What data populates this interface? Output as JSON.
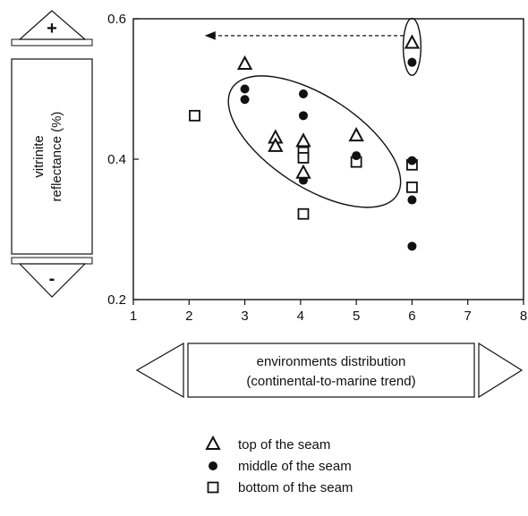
{
  "chart_data": {
    "type": "scatter",
    "title": "",
    "xlabel": "environments distribution\n(continental-to-marine trend)",
    "ylabel": "vitrinite\nreflectance (%)",
    "xlim": [
      1,
      8
    ],
    "ylim": [
      0.2,
      0.6
    ],
    "x_ticks": [
      "1",
      "2",
      "3",
      "4",
      "5",
      "6",
      "7",
      "8"
    ],
    "y_ticks": [
      "0.2",
      "0.4",
      "0.6"
    ],
    "y_axis_plus": "+",
    "y_axis_minus": "-",
    "grid": false,
    "legend_position": "bottom",
    "series": [
      {
        "name": "top of the seam",
        "marker": "triangle-open",
        "points": [
          {
            "x": 3.0,
            "y": 0.535
          },
          {
            "x": 3.55,
            "y": 0.43
          },
          {
            "x": 3.55,
            "y": 0.418
          },
          {
            "x": 4.05,
            "y": 0.425
          },
          {
            "x": 4.05,
            "y": 0.38
          },
          {
            "x": 5.0,
            "y": 0.433
          },
          {
            "x": 6.0,
            "y": 0.565
          }
        ]
      },
      {
        "name": "middle of the seam",
        "marker": "circle-filled",
        "points": [
          {
            "x": 3.0,
            "y": 0.5
          },
          {
            "x": 3.0,
            "y": 0.485
          },
          {
            "x": 4.05,
            "y": 0.493
          },
          {
            "x": 4.05,
            "y": 0.462
          },
          {
            "x": 4.05,
            "y": 0.37
          },
          {
            "x": 5.0,
            "y": 0.405
          },
          {
            "x": 6.0,
            "y": 0.398
          },
          {
            "x": 6.0,
            "y": 0.342
          },
          {
            "x": 6.0,
            "y": 0.276
          },
          {
            "x": 6.0,
            "y": 0.538
          }
        ]
      },
      {
        "name": "bottom of the seam",
        "marker": "square-open",
        "points": [
          {
            "x": 2.1,
            "y": 0.462
          },
          {
            "x": 4.05,
            "y": 0.41
          },
          {
            "x": 4.05,
            "y": 0.402
          },
          {
            "x": 4.05,
            "y": 0.322
          },
          {
            "x": 5.0,
            "y": 0.396
          },
          {
            "x": 6.0,
            "y": 0.392
          },
          {
            "x": 6.0,
            "y": 0.36
          }
        ]
      }
    ],
    "annotations": [
      {
        "type": "ellipse",
        "cx": 4.25,
        "cy": 0.425,
        "rx": 2.45,
        "ry": 0.072,
        "rotation_deg": 33
      },
      {
        "type": "ellipse",
        "cx": 6.0,
        "cy": 0.56,
        "rx": 0.22,
        "ry": 0.045,
        "rotation_deg": 0
      },
      {
        "type": "dashed-arrow",
        "from": [
          5.85,
          0.576
        ],
        "to": [
          2.3,
          0.576
        ]
      }
    ]
  }
}
